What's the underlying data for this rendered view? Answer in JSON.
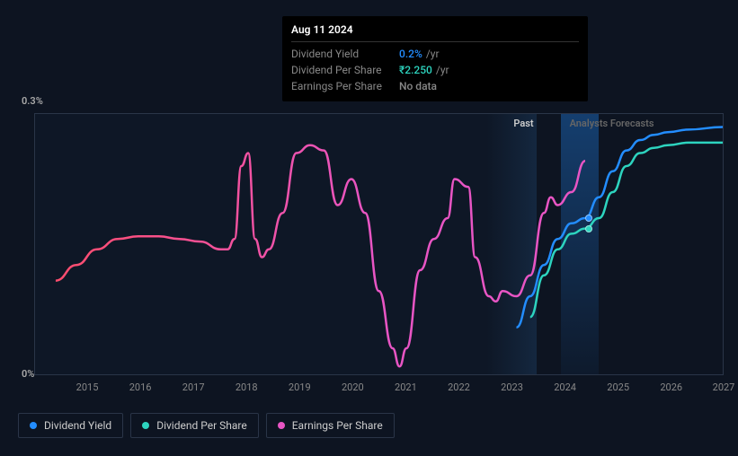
{
  "tooltip": {
    "date": "Aug 11 2024",
    "rows": [
      {
        "label": "Dividend Yield",
        "value": "0.2%",
        "unit": "/yr",
        "color": "#238dff"
      },
      {
        "label": "Dividend Per Share",
        "value": "₹2.250",
        "unit": "/yr",
        "color": "#2dd4bf"
      },
      {
        "label": "Earnings Per Share",
        "value": "No data",
        "unit": "",
        "color": "#888"
      }
    ]
  },
  "chart": {
    "y_max_label": "0.3%",
    "y_min_label": "0%",
    "section_past": "Past",
    "section_forecast": "Analysts Forecasts",
    "x_ticks": [
      {
        "label": "2015",
        "pos": 7.7
      },
      {
        "label": "2016",
        "pos": 15.4
      },
      {
        "label": "2017",
        "pos": 23.1
      },
      {
        "label": "2018",
        "pos": 30.8
      },
      {
        "label": "2019",
        "pos": 38.5
      },
      {
        "label": "2020",
        "pos": 46.2
      },
      {
        "label": "2021",
        "pos": 53.9
      },
      {
        "label": "2022",
        "pos": 61.6
      },
      {
        "label": "2023",
        "pos": 69.3
      },
      {
        "label": "2024",
        "pos": 77.0
      },
      {
        "label": "2025",
        "pos": 84.7
      },
      {
        "label": "2026",
        "pos": 92.4
      },
      {
        "label": "2027",
        "pos": 100
      }
    ],
    "series": {
      "eps": {
        "color_start": "#ff4d6d",
        "color_end": "#e855c4",
        "stroke_width": 2.5,
        "points": [
          [
            3,
            64
          ],
          [
            6,
            58
          ],
          [
            9,
            52
          ],
          [
            12,
            48
          ],
          [
            15,
            47
          ],
          [
            18,
            47
          ],
          [
            21,
            48
          ],
          [
            24,
            49
          ],
          [
            27,
            52
          ],
          [
            28,
            52
          ],
          [
            29,
            48
          ],
          [
            30,
            20
          ],
          [
            31,
            15
          ],
          [
            32,
            48
          ],
          [
            33,
            55
          ],
          [
            34,
            52
          ],
          [
            36,
            38
          ],
          [
            38,
            15
          ],
          [
            40,
            12
          ],
          [
            42,
            14
          ],
          [
            44,
            35
          ],
          [
            46,
            25
          ],
          [
            48,
            38
          ],
          [
            50,
            68
          ],
          [
            52,
            90
          ],
          [
            53,
            97
          ],
          [
            54,
            90
          ],
          [
            56,
            60
          ],
          [
            58,
            48
          ],
          [
            60,
            40
          ],
          [
            61,
            25
          ],
          [
            63,
            28
          ],
          [
            64,
            55
          ],
          [
            66,
            70
          ],
          [
            67,
            72
          ],
          [
            68,
            68
          ],
          [
            70,
            70
          ],
          [
            72,
            62
          ],
          [
            74,
            38
          ],
          [
            75,
            32
          ],
          [
            76,
            35
          ],
          [
            78,
            30
          ],
          [
            80,
            18
          ]
        ]
      },
      "yield_past": {
        "color": "#238dff",
        "stroke_width": 2.5,
        "points": [
          [
            70,
            82
          ],
          [
            72,
            70
          ],
          [
            74,
            58
          ],
          [
            76,
            48
          ],
          [
            78,
            42
          ],
          [
            80,
            40
          ]
        ]
      },
      "yield_fc": {
        "color": "#238dff",
        "stroke_width": 2.5,
        "points": [
          [
            80,
            40
          ],
          [
            82,
            32
          ],
          [
            84,
            22
          ],
          [
            86,
            14
          ],
          [
            88,
            10
          ],
          [
            90,
            8
          ],
          [
            92,
            7
          ],
          [
            95,
            6
          ],
          [
            100,
            5
          ]
        ]
      },
      "dps": {
        "color": "#2dd4bf",
        "stroke_width": 2.5,
        "points": [
          [
            72,
            78
          ],
          [
            74,
            62
          ],
          [
            76,
            52
          ],
          [
            78,
            46
          ],
          [
            80,
            44
          ],
          [
            82,
            40
          ],
          [
            84,
            30
          ],
          [
            86,
            20
          ],
          [
            88,
            15
          ],
          [
            90,
            13
          ],
          [
            92,
            12
          ],
          [
            95,
            11
          ],
          [
            100,
            11
          ]
        ]
      }
    },
    "markers": [
      {
        "x": 80.5,
        "y": 40,
        "color": "#238dff"
      },
      {
        "x": 80.5,
        "y": 44,
        "color": "#2dd4bf"
      }
    ]
  },
  "legend": [
    {
      "label": "Dividend Yield",
      "color": "#238dff"
    },
    {
      "label": "Dividend Per Share",
      "color": "#2dd4bf"
    },
    {
      "label": "Earnings Per Share",
      "color": "#e855c4"
    }
  ]
}
